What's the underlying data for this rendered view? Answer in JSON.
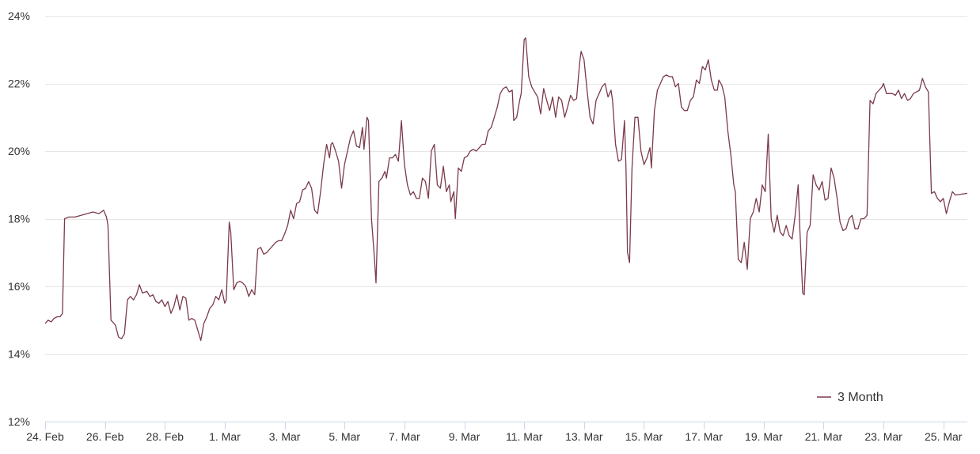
{
  "chart_data": {
    "type": "line",
    "title": "",
    "xlabel": "",
    "ylabel": "",
    "ylim": [
      12,
      24
    ],
    "y_ticks": [
      "12%",
      "14%",
      "16%",
      "18%",
      "20%",
      "22%",
      "24%"
    ],
    "y_tick_values": [
      12,
      14,
      16,
      18,
      20,
      22,
      24
    ],
    "x_ticks": [
      "24. Feb",
      "26. Feb",
      "28. Feb",
      "1. Mar",
      "3. Mar",
      "5. Mar",
      "7. Mar",
      "9. Mar",
      "11. Mar",
      "13. Mar",
      "15. Mar",
      "17. Mar",
      "19. Mar",
      "21. Mar",
      "23. Mar",
      "25. Mar"
    ],
    "x_tick_days": [
      0,
      2,
      4,
      6,
      8,
      10,
      12,
      14,
      16,
      18,
      20,
      22,
      24,
      26,
      28,
      30
    ],
    "xlim_days": [
      0,
      30.8
    ],
    "grid": true,
    "legend_position": "bottom-right",
    "series": [
      {
        "name": "3 Month",
        "color": "#7b3a4a",
        "points": [
          [
            0.0,
            14.9
          ],
          [
            0.1,
            15.0
          ],
          [
            0.2,
            14.95
          ],
          [
            0.3,
            15.05
          ],
          [
            0.4,
            15.1
          ],
          [
            0.5,
            15.1
          ],
          [
            0.58,
            15.2
          ],
          [
            0.65,
            18.0
          ],
          [
            0.8,
            18.05
          ],
          [
            1.0,
            18.05
          ],
          [
            1.2,
            18.1
          ],
          [
            1.4,
            18.15
          ],
          [
            1.6,
            18.2
          ],
          [
            1.8,
            18.15
          ],
          [
            1.95,
            18.25
          ],
          [
            2.05,
            18.05
          ],
          [
            2.1,
            17.8
          ],
          [
            2.2,
            15.0
          ],
          [
            2.3,
            14.9
          ],
          [
            2.35,
            14.85
          ],
          [
            2.45,
            14.5
          ],
          [
            2.55,
            14.45
          ],
          [
            2.65,
            14.6
          ],
          [
            2.75,
            15.6
          ],
          [
            2.85,
            15.7
          ],
          [
            2.95,
            15.6
          ],
          [
            3.05,
            15.75
          ],
          [
            3.15,
            16.05
          ],
          [
            3.25,
            15.8
          ],
          [
            3.4,
            15.85
          ],
          [
            3.5,
            15.7
          ],
          [
            3.6,
            15.75
          ],
          [
            3.7,
            15.55
          ],
          [
            3.8,
            15.5
          ],
          [
            3.9,
            15.6
          ],
          [
            4.0,
            15.4
          ],
          [
            4.1,
            15.55
          ],
          [
            4.2,
            15.2
          ],
          [
            4.3,
            15.4
          ],
          [
            4.4,
            15.75
          ],
          [
            4.5,
            15.3
          ],
          [
            4.6,
            15.7
          ],
          [
            4.7,
            15.65
          ],
          [
            4.8,
            15.0
          ],
          [
            4.9,
            15.05
          ],
          [
            5.0,
            15.0
          ],
          [
            5.1,
            14.7
          ],
          [
            5.2,
            14.4
          ],
          [
            5.3,
            14.9
          ],
          [
            5.4,
            15.1
          ],
          [
            5.5,
            15.35
          ],
          [
            5.6,
            15.45
          ],
          [
            5.7,
            15.7
          ],
          [
            5.8,
            15.6
          ],
          [
            5.9,
            15.9
          ],
          [
            6.0,
            15.5
          ],
          [
            6.05,
            15.6
          ],
          [
            6.15,
            17.9
          ],
          [
            6.2,
            17.6
          ],
          [
            6.3,
            15.9
          ],
          [
            6.4,
            16.1
          ],
          [
            6.5,
            16.15
          ],
          [
            6.6,
            16.1
          ],
          [
            6.7,
            16.0
          ],
          [
            6.8,
            15.7
          ],
          [
            6.9,
            15.9
          ],
          [
            7.0,
            15.75
          ],
          [
            7.1,
            17.1
          ],
          [
            7.2,
            17.15
          ],
          [
            7.3,
            16.95
          ],
          [
            7.4,
            17.0
          ],
          [
            7.5,
            17.1
          ],
          [
            7.6,
            17.2
          ],
          [
            7.7,
            17.3
          ],
          [
            7.8,
            17.35
          ],
          [
            7.9,
            17.35
          ],
          [
            8.0,
            17.55
          ],
          [
            8.1,
            17.8
          ],
          [
            8.2,
            18.25
          ],
          [
            8.3,
            18.0
          ],
          [
            8.4,
            18.45
          ],
          [
            8.5,
            18.5
          ],
          [
            8.6,
            18.85
          ],
          [
            8.7,
            18.9
          ],
          [
            8.8,
            19.1
          ],
          [
            8.9,
            18.9
          ],
          [
            9.0,
            18.25
          ],
          [
            9.1,
            18.15
          ],
          [
            9.2,
            18.8
          ],
          [
            9.3,
            19.6
          ],
          [
            9.4,
            20.2
          ],
          [
            9.5,
            19.8
          ],
          [
            9.55,
            20.2
          ],
          [
            9.6,
            20.25
          ],
          [
            9.7,
            20.0
          ],
          [
            9.8,
            19.7
          ],
          [
            9.9,
            18.9
          ],
          [
            10.0,
            19.6
          ],
          [
            10.1,
            20.0
          ],
          [
            10.2,
            20.4
          ],
          [
            10.3,
            20.6
          ],
          [
            10.4,
            20.15
          ],
          [
            10.5,
            20.1
          ],
          [
            10.6,
            20.7
          ],
          [
            10.65,
            20.05
          ],
          [
            10.75,
            21.0
          ],
          [
            10.8,
            20.9
          ],
          [
            10.9,
            18.0
          ],
          [
            11.0,
            16.8
          ],
          [
            11.05,
            16.1
          ],
          [
            11.15,
            19.1
          ],
          [
            11.25,
            19.2
          ],
          [
            11.35,
            19.4
          ],
          [
            11.4,
            19.2
          ],
          [
            11.5,
            19.8
          ],
          [
            11.6,
            19.8
          ],
          [
            11.7,
            19.9
          ],
          [
            11.8,
            19.7
          ],
          [
            11.9,
            20.9
          ],
          [
            12.0,
            19.6
          ],
          [
            12.1,
            19.0
          ],
          [
            12.2,
            18.7
          ],
          [
            12.3,
            18.8
          ],
          [
            12.4,
            18.6
          ],
          [
            12.5,
            18.6
          ],
          [
            12.6,
            19.2
          ],
          [
            12.7,
            19.1
          ],
          [
            12.8,
            18.6
          ],
          [
            12.9,
            20.0
          ],
          [
            13.0,
            20.2
          ],
          [
            13.1,
            19.0
          ],
          [
            13.2,
            18.9
          ],
          [
            13.3,
            19.55
          ],
          [
            13.4,
            18.8
          ],
          [
            13.5,
            19.0
          ],
          [
            13.55,
            18.5
          ],
          [
            13.65,
            18.8
          ],
          [
            13.7,
            18.0
          ],
          [
            13.8,
            19.5
          ],
          [
            13.9,
            19.4
          ],
          [
            14.0,
            19.8
          ],
          [
            14.1,
            19.85
          ],
          [
            14.2,
            20.0
          ],
          [
            14.3,
            20.05
          ],
          [
            14.4,
            20.0
          ],
          [
            14.5,
            20.1
          ],
          [
            14.6,
            20.2
          ],
          [
            14.7,
            20.2
          ],
          [
            14.8,
            20.6
          ],
          [
            14.9,
            20.7
          ],
          [
            15.0,
            21.0
          ],
          [
            15.1,
            21.3
          ],
          [
            15.2,
            21.7
          ],
          [
            15.3,
            21.85
          ],
          [
            15.4,
            21.9
          ],
          [
            15.5,
            21.75
          ],
          [
            15.6,
            21.8
          ],
          [
            15.65,
            20.9
          ],
          [
            15.75,
            21.0
          ],
          [
            15.85,
            21.5
          ],
          [
            15.9,
            21.7
          ],
          [
            16.0,
            23.3
          ],
          [
            16.05,
            23.35
          ],
          [
            16.15,
            22.2
          ],
          [
            16.25,
            21.9
          ],
          [
            16.35,
            21.75
          ],
          [
            16.45,
            21.6
          ],
          [
            16.55,
            21.1
          ],
          [
            16.65,
            21.85
          ],
          [
            16.75,
            21.5
          ],
          [
            16.85,
            21.2
          ],
          [
            16.95,
            21.6
          ],
          [
            17.05,
            21.0
          ],
          [
            17.15,
            21.6
          ],
          [
            17.25,
            21.5
          ],
          [
            17.35,
            21.0
          ],
          [
            17.45,
            21.3
          ],
          [
            17.55,
            21.65
          ],
          [
            17.65,
            21.5
          ],
          [
            17.75,
            21.55
          ],
          [
            17.85,
            22.6
          ],
          [
            17.9,
            22.95
          ],
          [
            18.0,
            22.7
          ],
          [
            18.1,
            21.8
          ],
          [
            18.2,
            21.0
          ],
          [
            18.3,
            20.8
          ],
          [
            18.4,
            21.5
          ],
          [
            18.5,
            21.7
          ],
          [
            18.6,
            21.9
          ],
          [
            18.7,
            22.0
          ],
          [
            18.8,
            21.6
          ],
          [
            18.9,
            21.8
          ],
          [
            18.95,
            21.5
          ],
          [
            19.05,
            20.2
          ],
          [
            19.15,
            19.7
          ],
          [
            19.25,
            19.75
          ],
          [
            19.35,
            20.9
          ],
          [
            19.4,
            19.5
          ],
          [
            19.45,
            17.0
          ],
          [
            19.52,
            16.7
          ],
          [
            19.6,
            19.5
          ],
          [
            19.7,
            21.0
          ],
          [
            19.8,
            21.0
          ],
          [
            19.9,
            20.0
          ],
          [
            20.0,
            19.6
          ],
          [
            20.1,
            19.8
          ],
          [
            20.2,
            20.1
          ],
          [
            20.25,
            19.5
          ],
          [
            20.35,
            21.2
          ],
          [
            20.45,
            21.8
          ],
          [
            20.55,
            22.0
          ],
          [
            20.65,
            22.2
          ],
          [
            20.75,
            22.25
          ],
          [
            20.85,
            22.2
          ],
          [
            20.95,
            22.2
          ],
          [
            21.05,
            21.9
          ],
          [
            21.15,
            22.0
          ],
          [
            21.25,
            21.3
          ],
          [
            21.35,
            21.2
          ],
          [
            21.45,
            21.2
          ],
          [
            21.55,
            21.5
          ],
          [
            21.65,
            21.6
          ],
          [
            21.75,
            22.1
          ],
          [
            21.85,
            22.0
          ],
          [
            21.95,
            22.5
          ],
          [
            22.05,
            22.4
          ],
          [
            22.15,
            22.7
          ],
          [
            22.25,
            22.1
          ],
          [
            22.35,
            21.8
          ],
          [
            22.45,
            21.8
          ],
          [
            22.5,
            22.1
          ],
          [
            22.6,
            21.95
          ],
          [
            22.7,
            21.6
          ],
          [
            22.8,
            20.6
          ],
          [
            22.9,
            19.9
          ],
          [
            23.0,
            19.0
          ],
          [
            23.05,
            18.8
          ],
          [
            23.15,
            16.8
          ],
          [
            23.25,
            16.7
          ],
          [
            23.35,
            17.3
          ],
          [
            23.45,
            16.5
          ],
          [
            23.55,
            18.0
          ],
          [
            23.65,
            18.2
          ],
          [
            23.75,
            18.6
          ],
          [
            23.85,
            18.2
          ],
          [
            23.95,
            19.0
          ],
          [
            24.05,
            18.8
          ],
          [
            24.15,
            20.5
          ],
          [
            24.25,
            18.0
          ],
          [
            24.35,
            17.6
          ],
          [
            24.45,
            18.1
          ],
          [
            24.55,
            17.6
          ],
          [
            24.65,
            17.5
          ],
          [
            24.75,
            17.8
          ],
          [
            24.85,
            17.5
          ],
          [
            24.95,
            17.4
          ],
          [
            25.05,
            18.1
          ],
          [
            25.15,
            19.0
          ],
          [
            25.2,
            17.8
          ],
          [
            25.3,
            15.8
          ],
          [
            25.35,
            15.75
          ],
          [
            25.45,
            17.6
          ],
          [
            25.55,
            17.8
          ],
          [
            25.65,
            19.3
          ],
          [
            25.75,
            19.0
          ],
          [
            25.85,
            18.85
          ],
          [
            25.95,
            19.1
          ],
          [
            26.05,
            18.55
          ],
          [
            26.15,
            18.6
          ],
          [
            26.25,
            19.5
          ],
          [
            26.35,
            19.2
          ],
          [
            26.45,
            18.6
          ],
          [
            26.55,
            17.9
          ],
          [
            26.65,
            17.65
          ],
          [
            26.75,
            17.7
          ],
          [
            26.85,
            18.0
          ],
          [
            26.95,
            18.1
          ],
          [
            27.05,
            17.7
          ],
          [
            27.15,
            17.7
          ],
          [
            27.25,
            18.0
          ],
          [
            27.35,
            18.0
          ],
          [
            27.45,
            18.1
          ],
          [
            27.55,
            21.5
          ],
          [
            27.65,
            21.4
          ],
          [
            27.75,
            21.7
          ],
          [
            27.85,
            21.8
          ],
          [
            27.95,
            21.9
          ],
          [
            28.0,
            22.0
          ],
          [
            28.1,
            21.7
          ],
          [
            28.2,
            21.7
          ],
          [
            28.3,
            21.7
          ],
          [
            28.4,
            21.65
          ],
          [
            28.5,
            21.8
          ],
          [
            28.6,
            21.55
          ],
          [
            28.7,
            21.7
          ],
          [
            28.8,
            21.5
          ],
          [
            28.9,
            21.55
          ],
          [
            29.0,
            21.7
          ],
          [
            29.1,
            21.75
          ],
          [
            29.2,
            21.8
          ],
          [
            29.3,
            22.15
          ],
          [
            29.4,
            21.9
          ],
          [
            29.5,
            21.75
          ],
          [
            29.6,
            18.75
          ],
          [
            29.7,
            18.8
          ],
          [
            29.8,
            18.6
          ],
          [
            29.9,
            18.5
          ],
          [
            30.0,
            18.6
          ],
          [
            30.1,
            18.15
          ],
          [
            30.2,
            18.5
          ],
          [
            30.3,
            18.8
          ],
          [
            30.4,
            18.7
          ],
          [
            30.8,
            18.75
          ]
        ]
      }
    ]
  }
}
